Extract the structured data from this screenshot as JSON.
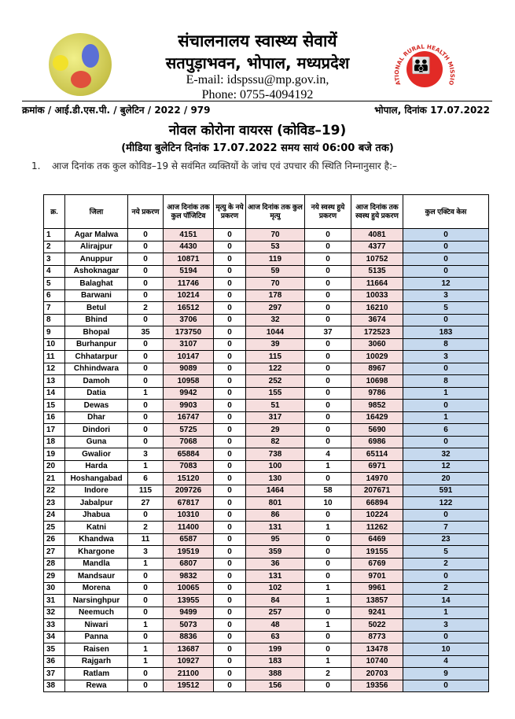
{
  "header": {
    "org_line1": "संचालनालय स्वास्थ्य सेवायें",
    "org_line2": "सतपुड़ाभवन, भोपाल, मध्यप्रदेश",
    "email": "E-mail: idspssu@mp.gov.in,",
    "phone": "Phone: 0755-4094192",
    "right_logo_text": "NATIONAL RURAL HEALTH MISSION",
    "ref": "क्रमांक / आई.डी.एस.पी. / बुलेटिन / 2022 / 979",
    "place_date": "भोपाल, दिनांक 17.07.2022"
  },
  "title": "नोवल कोरोना वायरस (कोविड–19)",
  "subtitle": "(मीडिया बुलेटिन दिनांक 17.07.2022 समय सायं 06:00 बजे तक)",
  "para": {
    "num": "1.",
    "text": "आज दिनांक तक कुल कोविड–19 से सवंमित व्यक्तियों के जांच एवं उपचार की स्थिति निम्नानुसार है:–"
  },
  "colors": {
    "pink_col": "#f6dede",
    "blue_col": "#c6d9ee"
  },
  "table": {
    "headers": [
      "क्र.",
      "जिला",
      "नये प्रकरण",
      "आज दिनांक तक कुल पॉजिटिव",
      "मृत्यु के नये प्रकरण",
      "आज दिनांक तक कुल मृत्यु",
      "नये स्वस्थ हुये प्रकरण",
      "आज दिनांक तक स्वस्थ हुये प्रकरण",
      "कुल एक्टिव केस"
    ],
    "rows": [
      [
        "1",
        "Agar Malwa",
        "0",
        "4151",
        "0",
        "70",
        "0",
        "4081",
        "0"
      ],
      [
        "2",
        "Alirajpur",
        "0",
        "4430",
        "0",
        "53",
        "0",
        "4377",
        "0"
      ],
      [
        "3",
        "Anuppur",
        "0",
        "10871",
        "0",
        "119",
        "0",
        "10752",
        "0"
      ],
      [
        "4",
        "Ashoknagar",
        "0",
        "5194",
        "0",
        "59",
        "0",
        "5135",
        "0"
      ],
      [
        "5",
        "Balaghat",
        "0",
        "11746",
        "0",
        "70",
        "0",
        "11664",
        "12"
      ],
      [
        "6",
        "Barwani",
        "0",
        "10214",
        "0",
        "178",
        "0",
        "10033",
        "3"
      ],
      [
        "7",
        "Betul",
        "2",
        "16512",
        "0",
        "297",
        "0",
        "16210",
        "5"
      ],
      [
        "8",
        "Bhind",
        "0",
        "3706",
        "0",
        "32",
        "0",
        "3674",
        "0"
      ],
      [
        "9",
        "Bhopal",
        "35",
        "173750",
        "0",
        "1044",
        "37",
        "172523",
        "183"
      ],
      [
        "10",
        "Burhanpur",
        "0",
        "3107",
        "0",
        "39",
        "0",
        "3060",
        "8"
      ],
      [
        "11",
        "Chhatarpur",
        "0",
        "10147",
        "0",
        "115",
        "0",
        "10029",
        "3"
      ],
      [
        "12",
        "Chhindwara",
        "0",
        "9089",
        "0",
        "122",
        "0",
        "8967",
        "0"
      ],
      [
        "13",
        "Damoh",
        "0",
        "10958",
        "0",
        "252",
        "0",
        "10698",
        "8"
      ],
      [
        "14",
        "Datia",
        "1",
        "9942",
        "0",
        "155",
        "0",
        "9786",
        "1"
      ],
      [
        "15",
        "Dewas",
        "0",
        "9903",
        "0",
        "51",
        "0",
        "9852",
        "0"
      ],
      [
        "16",
        "Dhar",
        "0",
        "16747",
        "0",
        "317",
        "0",
        "16429",
        "1"
      ],
      [
        "17",
        "Dindori",
        "0",
        "5725",
        "0",
        "29",
        "0",
        "5690",
        "6"
      ],
      [
        "18",
        "Guna",
        "0",
        "7068",
        "0",
        "82",
        "0",
        "6986",
        "0"
      ],
      [
        "19",
        "Gwalior",
        "3",
        "65884",
        "0",
        "738",
        "4",
        "65114",
        "32"
      ],
      [
        "20",
        "Harda",
        "1",
        "7083",
        "0",
        "100",
        "1",
        "6971",
        "12"
      ],
      [
        "21",
        "Hoshangabad",
        "6",
        "15120",
        "0",
        "130",
        "0",
        "14970",
        "20"
      ],
      [
        "22",
        "Indore",
        "115",
        "209726",
        "0",
        "1464",
        "58",
        "207671",
        "591"
      ],
      [
        "23",
        "Jabalpur",
        "27",
        "67817",
        "0",
        "801",
        "10",
        "66894",
        "122"
      ],
      [
        "24",
        "Jhabua",
        "0",
        "10310",
        "0",
        "86",
        "0",
        "10224",
        "0"
      ],
      [
        "25",
        "Katni",
        "2",
        "11400",
        "0",
        "131",
        "1",
        "11262",
        "7"
      ],
      [
        "26",
        "Khandwa",
        "11",
        "6587",
        "0",
        "95",
        "0",
        "6469",
        "23"
      ],
      [
        "27",
        "Khargone",
        "3",
        "19519",
        "0",
        "359",
        "0",
        "19155",
        "5"
      ],
      [
        "28",
        "Mandla",
        "1",
        "6807",
        "0",
        "36",
        "0",
        "6769",
        "2"
      ],
      [
        "29",
        "Mandsaur",
        "0",
        "9832",
        "0",
        "131",
        "0",
        "9701",
        "0"
      ],
      [
        "30",
        "Morena",
        "0",
        "10065",
        "0",
        "102",
        "1",
        "9961",
        "2"
      ],
      [
        "31",
        "Narsinghpur",
        "0",
        "13955",
        "0",
        "84",
        "1",
        "13857",
        "14"
      ],
      [
        "32",
        "Neemuch",
        "0",
        "9499",
        "0",
        "257",
        "0",
        "9241",
        "1"
      ],
      [
        "33",
        "Niwari",
        "1",
        "5073",
        "0",
        "48",
        "1",
        "5022",
        "3"
      ],
      [
        "34",
        "Panna",
        "0",
        "8836",
        "0",
        "63",
        "0",
        "8773",
        "0"
      ],
      [
        "35",
        "Raisen",
        "1",
        "13687",
        "0",
        "199",
        "0",
        "13478",
        "10"
      ],
      [
        "36",
        "Rajgarh",
        "1",
        "10927",
        "0",
        "183",
        "1",
        "10740",
        "4"
      ],
      [
        "37",
        "Ratlam",
        "0",
        "21100",
        "0",
        "388",
        "2",
        "20703",
        "9"
      ],
      [
        "38",
        "Rewa",
        "0",
        "19512",
        "0",
        "156",
        "0",
        "19356",
        "0"
      ]
    ]
  }
}
